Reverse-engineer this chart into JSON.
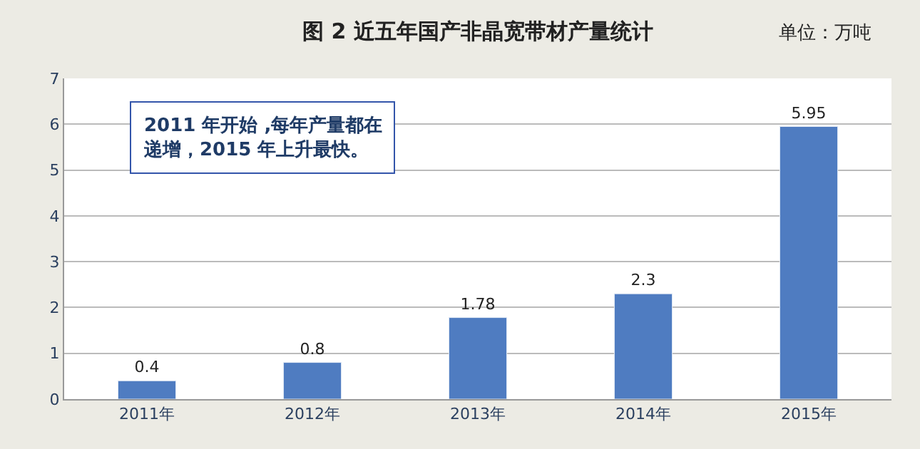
{
  "chart_data": {
    "type": "bar",
    "title": "图 2 近五年国产非晶宽带材产量统计",
    "subtitle": "单位：万吨",
    "categories": [
      "2011年",
      "2012年",
      "2013年",
      "2014年",
      "2015年"
    ],
    "values": [
      0.4,
      0.8,
      1.78,
      2.3,
      5.95
    ],
    "color": "#4f7cc1",
    "ylim": [
      0,
      7
    ],
    "yticks": [
      0,
      1,
      2,
      3,
      4,
      5,
      6,
      7
    ],
    "grid": "y",
    "data_labels": true,
    "legend": false,
    "annotations": [
      "2011 年开始 ,每年产量都在递增，2015 年上升最快。"
    ]
  }
}
